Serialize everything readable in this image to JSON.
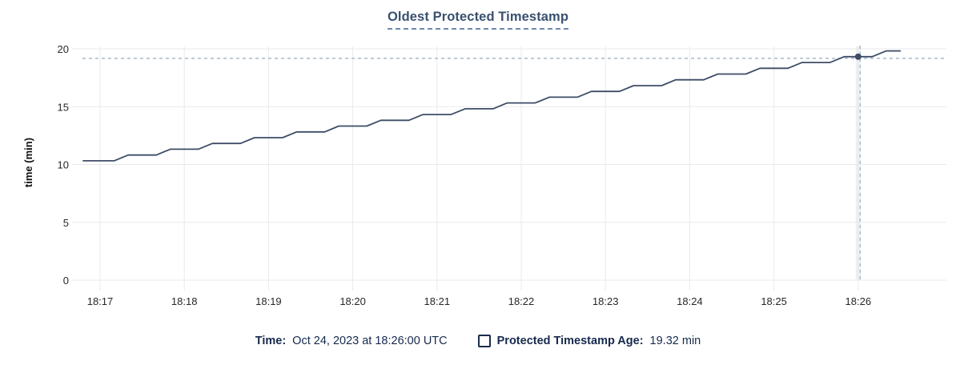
{
  "chart_data": {
    "type": "line",
    "title": "Oldest Protected Timestamp",
    "xlabel": "",
    "ylabel": "time (min)",
    "ylim": [
      0,
      20
    ],
    "yticks": [
      0,
      5,
      10,
      15,
      20
    ],
    "xticks": [
      "18:17",
      "18:18",
      "18:19",
      "18:20",
      "18:21",
      "18:22",
      "18:23",
      "18:24",
      "18:25",
      "18:26"
    ],
    "x_unit": "seconds after 18:17:00 UTC",
    "grid": true,
    "legend_position": "bottom-center",
    "series": [
      {
        "name": "Protected Timestamp Age",
        "color": "#3e4c66",
        "points": [
          [
            -12,
            10.32
          ],
          [
            0,
            10.32
          ],
          [
            10,
            10.32
          ],
          [
            20,
            10.82
          ],
          [
            30,
            10.82
          ],
          [
            40,
            10.82
          ],
          [
            50,
            11.32
          ],
          [
            60,
            11.32
          ],
          [
            70,
            11.32
          ],
          [
            80,
            11.82
          ],
          [
            90,
            11.82
          ],
          [
            100,
            11.82
          ],
          [
            110,
            12.32
          ],
          [
            120,
            12.32
          ],
          [
            130,
            12.32
          ],
          [
            140,
            12.82
          ],
          [
            150,
            12.82
          ],
          [
            160,
            12.82
          ],
          [
            170,
            13.32
          ],
          [
            180,
            13.32
          ],
          [
            190,
            13.32
          ],
          [
            200,
            13.82
          ],
          [
            210,
            13.82
          ],
          [
            220,
            13.82
          ],
          [
            230,
            14.32
          ],
          [
            240,
            14.32
          ],
          [
            250,
            14.32
          ],
          [
            260,
            14.82
          ],
          [
            270,
            14.82
          ],
          [
            280,
            14.82
          ],
          [
            290,
            15.32
          ],
          [
            300,
            15.32
          ],
          [
            310,
            15.32
          ],
          [
            320,
            15.82
          ],
          [
            330,
            15.82
          ],
          [
            340,
            15.82
          ],
          [
            350,
            16.32
          ],
          [
            360,
            16.32
          ],
          [
            370,
            16.32
          ],
          [
            380,
            16.82
          ],
          [
            390,
            16.82
          ],
          [
            400,
            16.82
          ],
          [
            410,
            17.32
          ],
          [
            420,
            17.32
          ],
          [
            430,
            17.32
          ],
          [
            440,
            17.82
          ],
          [
            450,
            17.82
          ],
          [
            460,
            17.82
          ],
          [
            470,
            18.32
          ],
          [
            480,
            18.32
          ],
          [
            490,
            18.32
          ],
          [
            500,
            18.82
          ],
          [
            510,
            18.82
          ],
          [
            520,
            18.82
          ],
          [
            530,
            19.32
          ],
          [
            540,
            19.32
          ],
          [
            550,
            19.32
          ],
          [
            560,
            19.82
          ],
          [
            570,
            19.82
          ]
        ]
      }
    ],
    "tracked_point": {
      "t": 540,
      "y": 19.32,
      "time": "18:26:00",
      "value_label": "19.32 min"
    },
    "crosshair_color": "#a6bac9",
    "grid_color": "#e9eaec",
    "hover_band_color": "#eef0f2"
  },
  "legend": {
    "time_label": "Time:",
    "time_value": "Oct 24, 2023 at 18:26:00 UTC",
    "series_label": "Protected Timestamp Age:",
    "series_value": "19.32 min"
  },
  "colors": {
    "title": "#3a506f",
    "title_underline": "#7088ab",
    "legend_text": "#16294d",
    "line": "#3e4c66",
    "crosshair": "#a6bac9",
    "tick_text": "#26282b"
  }
}
